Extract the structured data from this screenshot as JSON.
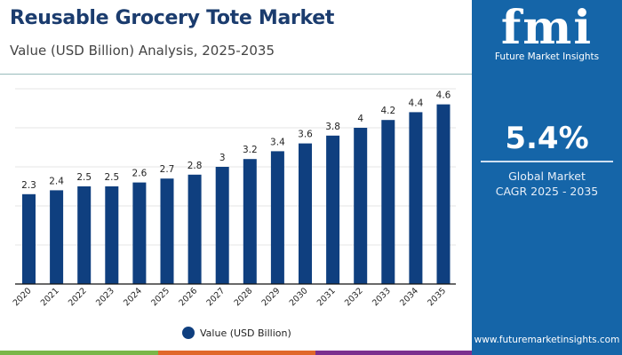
{
  "header": {
    "title": "Reusable Grocery Tote Market",
    "subtitle": "Value (USD Billion) Analysis, 2025-2035"
  },
  "chart_data": {
    "type": "bar",
    "categories": [
      "2020",
      "2021",
      "2022",
      "2023",
      "2024",
      "2025",
      "2026",
      "2027",
      "2028",
      "2029",
      "2030",
      "2031",
      "2032",
      "2033",
      "2034",
      "2035"
    ],
    "series": [
      {
        "name": "Value (USD Billion)",
        "values": [
          2.3,
          2.4,
          2.5,
          2.5,
          2.6,
          2.7,
          2.8,
          3,
          3.2,
          3.4,
          3.6,
          3.8,
          4,
          4.2,
          4.4,
          4.6
        ],
        "color": "#0f3f7f"
      }
    ],
    "data_labels": [
      "2.3",
      "2.4",
      "2.5",
      "2.5",
      "2.6",
      "2.7",
      "2.8",
      "3",
      "3.2",
      "3.4",
      "3.6",
      "3.8",
      "4",
      "4.2",
      "4.4",
      "4.6"
    ],
    "ylim": [
      0,
      5
    ],
    "grid": true,
    "legend": "bottom-center"
  },
  "legend": {
    "label": "Value (USD Billion)"
  },
  "sidebar": {
    "logo_text": "fmi",
    "logo_subtitle": "Future Market Insights",
    "cagr_value": "5.4%",
    "cagr_label_line1": "Global Market",
    "cagr_label_line2": "CAGR 2025 - 2035",
    "website": "www.futuremarketinsights.com",
    "color": "#1565a8"
  },
  "stripe_colors": [
    "#7ab648",
    "#e0682a",
    "#7b2f8e"
  ]
}
